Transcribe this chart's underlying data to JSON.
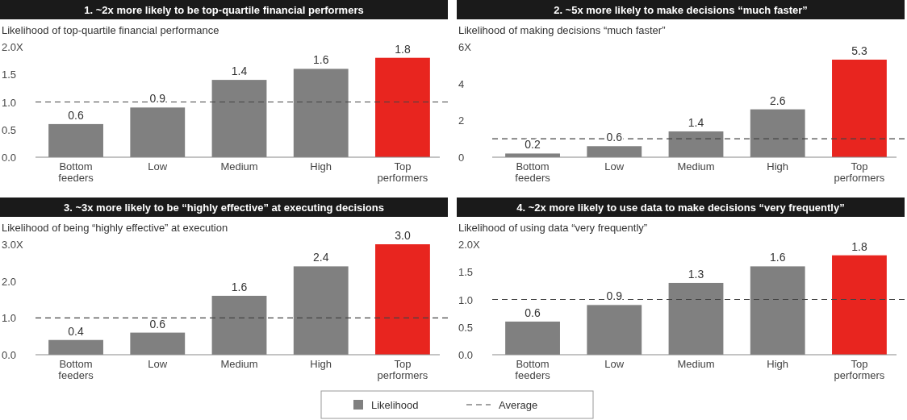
{
  "chart_data": [
    {
      "type": "bar",
      "title": "1.  ~2x more likely to be top-quartile financial performers",
      "subtitle": "Likelihood of top-quartile financial performance",
      "categories": [
        "Bottom feeders",
        "Low",
        "Medium",
        "High",
        "Top performers"
      ],
      "series": [
        {
          "values": [
            0.6,
            0.9,
            1.4,
            1.6,
            1.8
          ],
          "colors": [
            "#808080",
            "#808080",
            "#808080",
            "#808080",
            "#e8251f"
          ],
          "value_labels": [
            "0.6",
            "0.9",
            "1.4",
            "1.6",
            "1.8"
          ]
        }
      ],
      "ylim": [
        0,
        2
      ],
      "yticks": [
        {
          "value": 0,
          "label": "0.0"
        },
        0.5,
        {
          "value": 1,
          "label": "1.0"
        },
        1.5,
        {
          "value": 2,
          "label": "2.0X"
        }
      ],
      "ref_lines": [
        {
          "axis": "y",
          "value": 1,
          "line_style": "dashed",
          "color": "#444444"
        }
      ],
      "grid": false,
      "legend": false
    },
    {
      "type": "bar",
      "title": "2.  ~5x more likely to make decisions “much faster”",
      "subtitle": "Likelihood of making decisions “much faster”",
      "categories": [
        "Bottom feeders",
        "Low",
        "Medium",
        "High",
        "Top performers"
      ],
      "series": [
        {
          "values": [
            0.2,
            0.6,
            1.4,
            2.6,
            5.3
          ],
          "colors": [
            "#808080",
            "#808080",
            "#808080",
            "#808080",
            "#e8251f"
          ],
          "value_labels": [
            "0.2",
            "0.6",
            "1.4",
            "2.6",
            "5.3"
          ]
        }
      ],
      "ylim": [
        0,
        6
      ],
      "yticks": [
        0,
        2,
        4,
        {
          "value": 6,
          "label": "6X"
        }
      ],
      "ref_lines": [
        {
          "axis": "y",
          "value": 1,
          "line_style": "dashed",
          "color": "#444444"
        }
      ],
      "grid": false,
      "legend": false
    },
    {
      "type": "bar",
      "title": "3.  ~3x more likely to be “highly effective” at executing decisions",
      "subtitle": "Likelihood of being “highly effective” at execution",
      "categories": [
        "Bottom feeders",
        "Low",
        "Medium",
        "High",
        "Top performers"
      ],
      "series": [
        {
          "values": [
            0.4,
            0.6,
            1.6,
            2.4,
            3.0
          ],
          "colors": [
            "#808080",
            "#808080",
            "#808080",
            "#808080",
            "#e8251f"
          ],
          "value_labels": [
            "0.4",
            "0.6",
            "1.6",
            "2.4",
            "3.0"
          ]
        }
      ],
      "ylim": [
        0,
        3
      ],
      "yticks": [
        {
          "value": 0,
          "label": "0.0"
        },
        {
          "value": 1,
          "label": "1.0"
        },
        {
          "value": 2,
          "label": "2.0"
        },
        {
          "value": 3,
          "label": "3.0X"
        }
      ],
      "ref_lines": [
        {
          "axis": "y",
          "value": 1,
          "line_style": "dashed",
          "color": "#444444"
        }
      ],
      "grid": false,
      "legend": false
    },
    {
      "type": "bar",
      "title": "4.  ~2x more likely to use data to make decisions “very frequently”",
      "subtitle": "Likelihood of using data “very frequently”",
      "categories": [
        "Bottom feeders",
        "Low",
        "Medium",
        "High",
        "Top performers"
      ],
      "series": [
        {
          "name": "Likelihood",
          "color": "#808080",
          "values": [
            0.6,
            0.9,
            1.3,
            1.6,
            1.8
          ],
          "colors": [
            "#808080",
            "#808080",
            "#808080",
            "#808080",
            "#e8251f"
          ],
          "value_labels": [
            "0.6",
            "0.9",
            "1.3",
            "1.6",
            "1.8"
          ]
        }
      ],
      "ylim": [
        0,
        2
      ],
      "yticks": [
        {
          "value": 0,
          "label": "0.0"
        },
        0.5,
        {
          "value": 1,
          "label": "1.0"
        },
        1.5,
        {
          "value": 2,
          "label": "2.0X"
        }
      ],
      "ref_lines": [
        {
          "axis": "y",
          "value": 1,
          "line_style": "dashed",
          "color": "#444444",
          "label": "Average"
        }
      ],
      "grid": false,
      "legend": "bottom"
    }
  ]
}
